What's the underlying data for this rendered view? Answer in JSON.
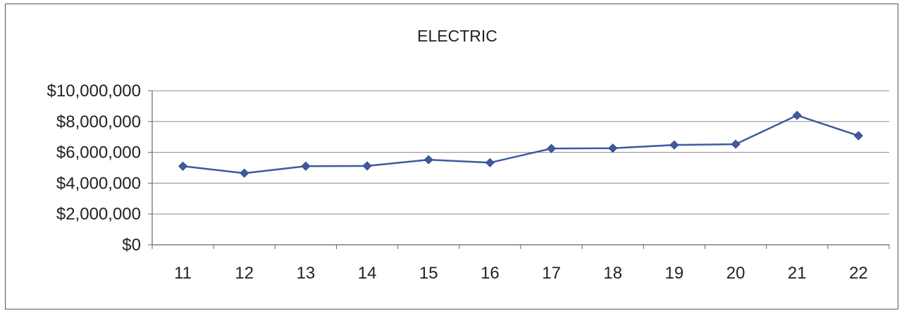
{
  "chart_data": {
    "type": "line",
    "title": "ELECTRIC",
    "xlabel": "",
    "ylabel": "",
    "categories": [
      "11",
      "12",
      "13",
      "14",
      "15",
      "16",
      "17",
      "18",
      "19",
      "20",
      "21",
      "22"
    ],
    "y_ticks": [
      "$0",
      "$2,000,000",
      "$4,000,000",
      "$6,000,000",
      "$8,000,000",
      "$10,000,000"
    ],
    "ylim": [
      0,
      10000000
    ],
    "grid": true,
    "legend": "none",
    "series": [
      {
        "values": [
          5100000,
          4650000,
          5100000,
          5120000,
          5520000,
          5330000,
          6250000,
          6270000,
          6480000,
          6530000,
          8400000,
          7080000
        ]
      }
    ],
    "colors": {
      "line": "#3f5a9e",
      "marker": "#3f5a9e",
      "grid": "#8a8a8a",
      "axis": "#666666"
    }
  }
}
